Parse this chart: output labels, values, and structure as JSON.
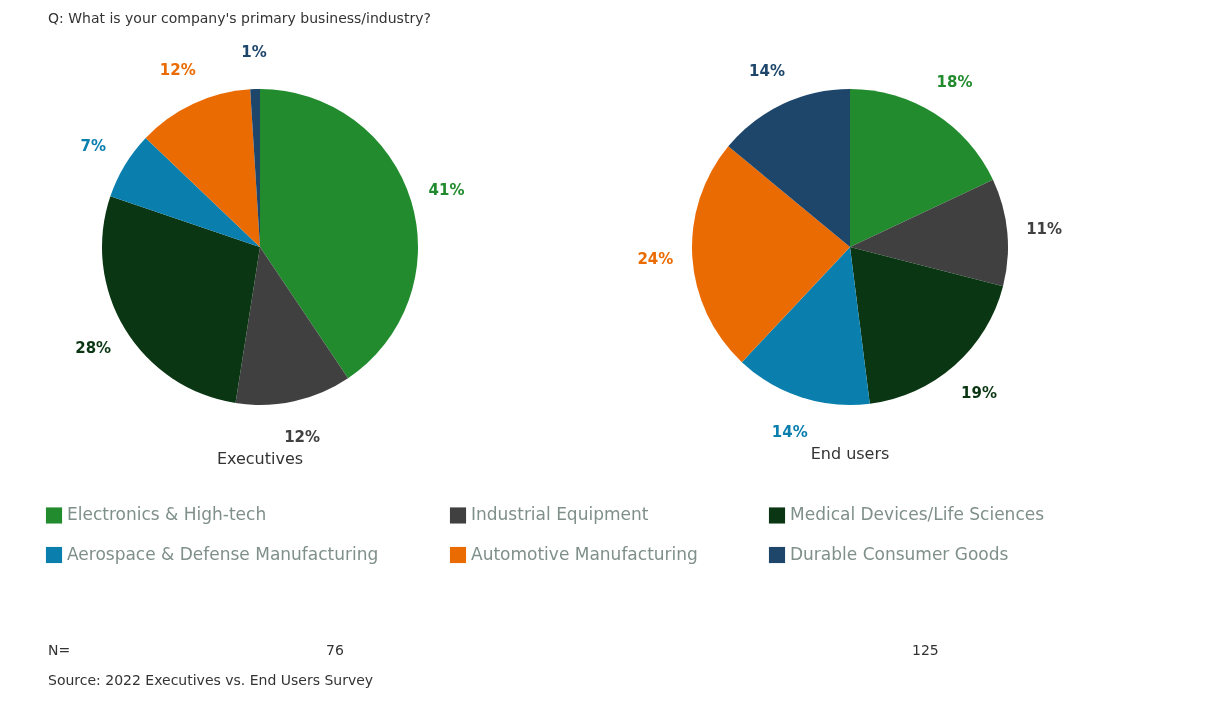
{
  "chart_data": [
    {
      "type": "pie",
      "title": "Executives",
      "categories": [
        "Electronics & High-tech",
        "Industrial Equipment",
        "Medical Devices/Life Sciences",
        "Aerospace & Defense Manufacturing",
        "Automotive Manufacturing",
        "Durable Consumer Goods"
      ],
      "values": [
        41,
        12,
        28,
        7,
        12,
        1
      ],
      "value_labels": [
        "41%",
        "12%",
        "28%",
        "7%",
        "12%",
        "1%"
      ],
      "colors": [
        "#228b2e",
        "#404040",
        "#0b3613",
        "#0a7fae",
        "#eb6b03",
        "#1e466b"
      ],
      "legend": "bottom",
      "annotations": [
        "Q: What is your company's primary business/industry?",
        "N=",
        "76",
        "Source: 2022 Executives vs. End Users Survey"
      ]
    },
    {
      "type": "pie",
      "title": "End users",
      "categories": [
        null,
        null,
        null,
        null,
        null,
        null
      ],
      "values": [
        18,
        11,
        19,
        14,
        24,
        14
      ],
      "value_labels": [
        "18%",
        "11%",
        "19%",
        "14%",
        "24%",
        "14%"
      ],
      "colors": [
        "#228b2e",
        "#404040",
        "#0b3613",
        "#0a7fae",
        "#eb6b03",
        "#1e466b"
      ],
      "annotations": [
        "125"
      ]
    }
  ]
}
